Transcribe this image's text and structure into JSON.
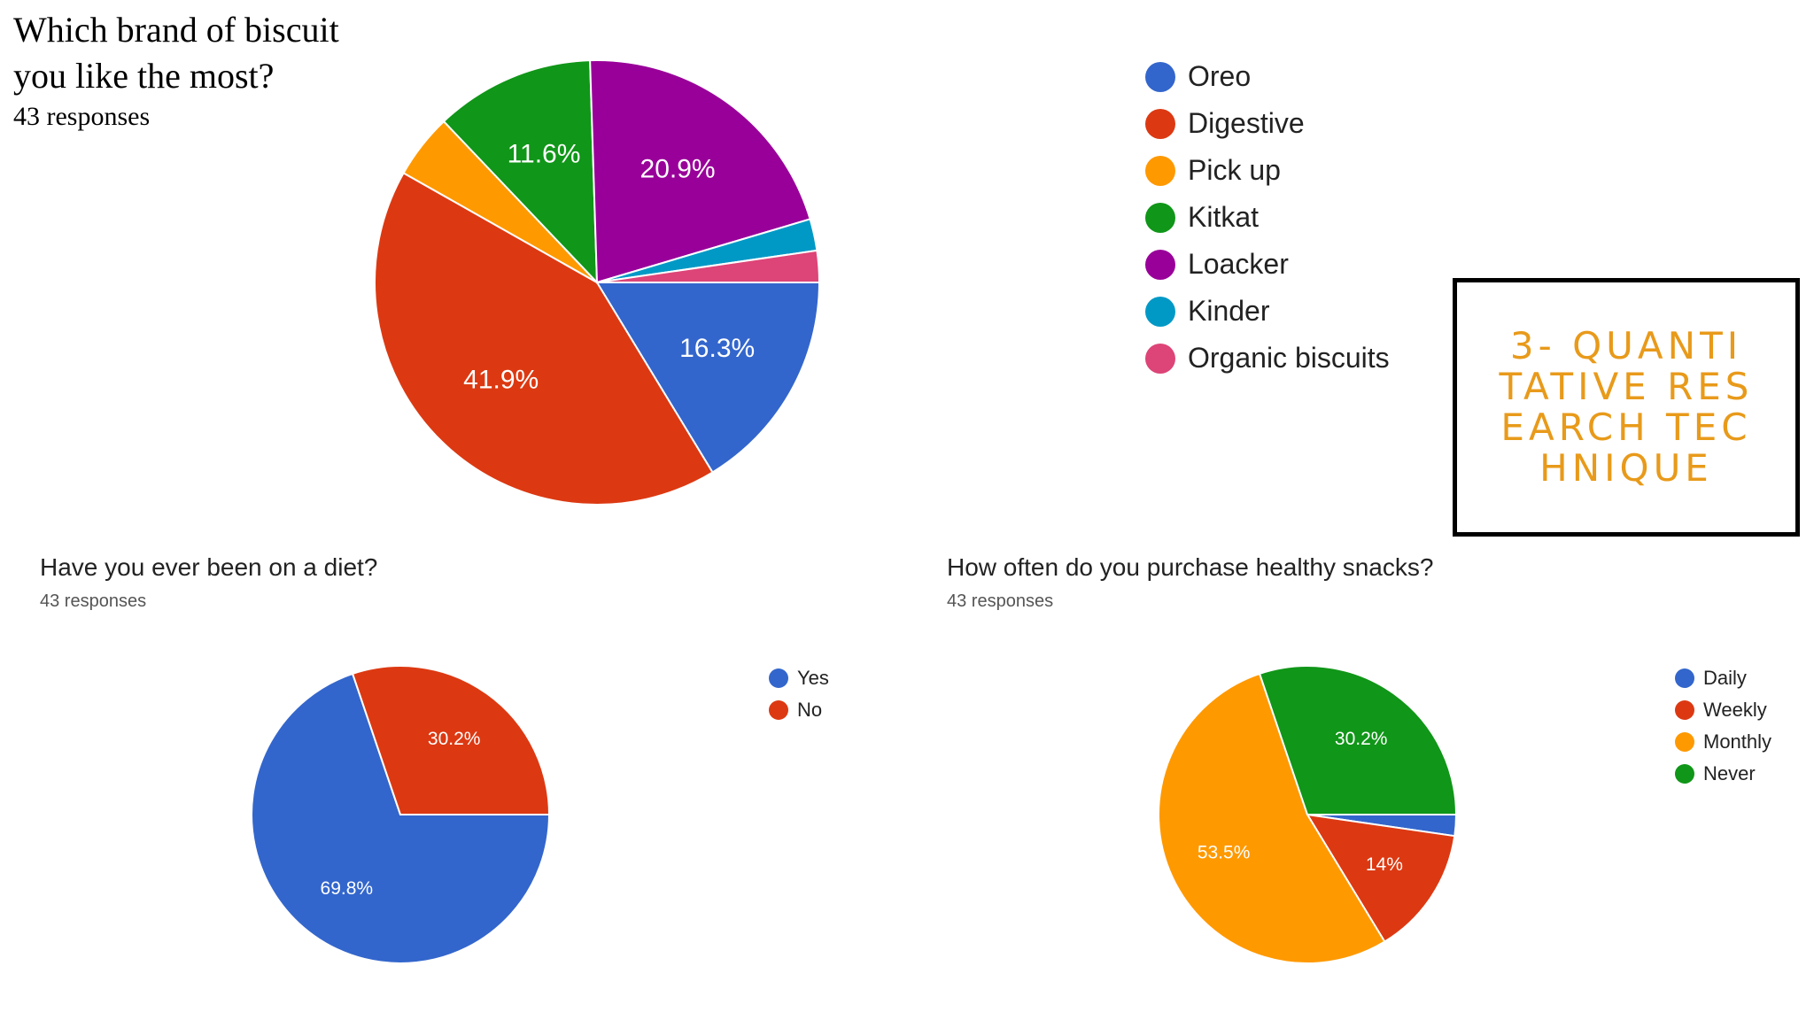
{
  "slide": {
    "box_text": "3- QUANTITATIVE RESEARCH TECHNIQUE"
  },
  "chart_data": [
    {
      "type": "pie",
      "title": "Which brand of biscuit you like the most?",
      "title_line1": "Which brand of biscuit",
      "title_line2": "you like the most?",
      "subtitle": "43 responses",
      "legend_position": "right",
      "categories": [
        "Oreo",
        "Digestive",
        "Pick up",
        "Kitkat",
        "Loacker",
        "Kinder",
        "Organic biscuits"
      ],
      "values": [
        16.3,
        41.9,
        4.7,
        11.6,
        20.9,
        2.3,
        2.3
      ],
      "labels": [
        "16.3%",
        "41.9%",
        "",
        "11.6%",
        "20.9%",
        "",
        ""
      ],
      "colors": [
        "#3366cc",
        "#dc3912",
        "#ff9900",
        "#109618",
        "#990099",
        "#0099c6",
        "#dd4477"
      ]
    },
    {
      "type": "pie",
      "title": "Have you ever been on a diet?",
      "subtitle": "43 responses",
      "legend_position": "right",
      "categories": [
        "Yes",
        "No"
      ],
      "values": [
        69.8,
        30.2
      ],
      "labels": [
        "69.8%",
        "30.2%"
      ],
      "colors": [
        "#3366cc",
        "#dc3912"
      ]
    },
    {
      "type": "pie",
      "title": "How often do you purchase healthy snacks?",
      "subtitle": "43 responses",
      "legend_position": "right",
      "categories": [
        "Daily",
        "Weekly",
        "Monthly",
        "Never"
      ],
      "values": [
        2.3,
        14,
        53.5,
        30.2
      ],
      "labels": [
        "",
        "14%",
        "53.5%",
        "30.2%"
      ],
      "colors": [
        "#3366cc",
        "#dc3912",
        "#ff9900",
        "#109618"
      ]
    }
  ]
}
